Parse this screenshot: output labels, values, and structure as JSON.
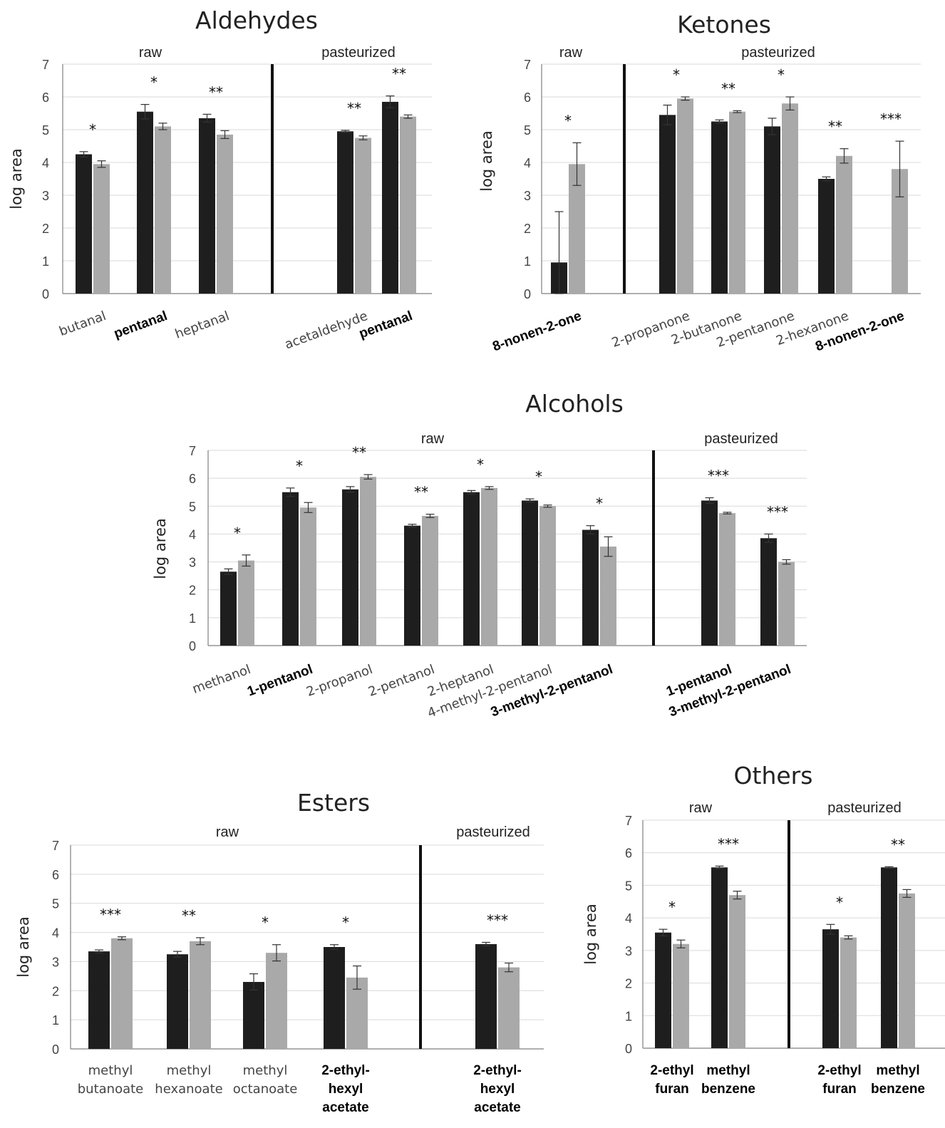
{
  "colors": {
    "dark": "#1e1e1e",
    "light": "#a9a9a9",
    "grid": "#d9d9d9",
    "divider": "#111111"
  },
  "chart_data": [
    {
      "type": "bar",
      "title": "Aldehydes",
      "ylabel": "log area",
      "ylim": [
        0,
        7
      ],
      "yticks": [
        "0",
        "1",
        "2",
        "3",
        "4",
        "5",
        "6",
        "7"
      ],
      "groups": [
        "raw",
        "pasteurized"
      ],
      "categories": [
        "butanal",
        "pentanal",
        "heptanal",
        "acetaldehyde",
        "pentanal"
      ],
      "category_group": [
        "raw",
        "raw",
        "raw",
        "pasteurized",
        "pasteurized"
      ],
      "bold_categories": [
        false,
        true,
        false,
        false,
        true
      ],
      "series": [
        {
          "values": [
            4.25,
            5.55,
            5.35,
            4.95,
            5.85
          ],
          "errors": [
            0.08,
            0.22,
            0.12,
            0.03,
            0.18
          ]
        },
        {
          "values": [
            3.95,
            5.1,
            4.85,
            4.75,
            5.4
          ],
          "errors": [
            0.1,
            0.1,
            0.12,
            0.06,
            0.05
          ]
        }
      ],
      "significance": [
        "*",
        "*",
        "**",
        "**",
        "**"
      ]
    },
    {
      "type": "bar",
      "title": "Ketones",
      "ylabel": "log area",
      "ylim": [
        0,
        7
      ],
      "yticks": [
        "0",
        "1",
        "2",
        "3",
        "4",
        "5",
        "6",
        "7"
      ],
      "groups": [
        "raw",
        "pasteurized"
      ],
      "categories": [
        "8-nonen-2-one",
        "2-propanone",
        "2-butanone",
        "2-pentanone",
        "2-hexanone",
        "8-nonen-2-one"
      ],
      "category_group": [
        "raw",
        "pasteurized",
        "pasteurized",
        "pasteurized",
        "pasteurized",
        "pasteurized"
      ],
      "bold_categories": [
        true,
        false,
        false,
        false,
        false,
        true
      ],
      "series": [
        {
          "values": [
            0.95,
            5.45,
            5.25,
            5.1,
            3.5,
            0
          ],
          "errors": [
            1.55,
            0.3,
            0.05,
            0.25,
            0.06,
            0
          ]
        },
        {
          "values": [
            3.95,
            5.95,
            5.55,
            5.8,
            4.2,
            3.8
          ],
          "errors": [
            0.65,
            0.05,
            0.03,
            0.2,
            0.22,
            0.85
          ]
        }
      ],
      "significance": [
        "*",
        "*",
        "**",
        "*",
        "**",
        "***"
      ]
    },
    {
      "type": "bar",
      "title": "Alcohols",
      "ylabel": "log area",
      "ylim": [
        0,
        7
      ],
      "yticks": [
        "0",
        "1",
        "2",
        "3",
        "4",
        "5",
        "6",
        "7"
      ],
      "groups": [
        "raw",
        "pasteurized"
      ],
      "categories": [
        "methanol",
        "1-pentanol",
        "2-propanol",
        "2-pentanol",
        "2-heptanol",
        "4-methyl-2-pentanol",
        "3-methyl-2-pentanol",
        "1-pentanol",
        "3-methyl-2-pentanol"
      ],
      "category_group": [
        "raw",
        "raw",
        "raw",
        "raw",
        "raw",
        "raw",
        "raw",
        "pasteurized",
        "pasteurized"
      ],
      "bold_categories": [
        false,
        true,
        false,
        false,
        false,
        false,
        true,
        true,
        true
      ],
      "series": [
        {
          "values": [
            2.65,
            5.5,
            5.6,
            4.3,
            5.5,
            5.2,
            4.15,
            5.2,
            3.85
          ],
          "errors": [
            0.1,
            0.15,
            0.1,
            0.05,
            0.06,
            0.06,
            0.15,
            0.1,
            0.15
          ]
        },
        {
          "values": [
            3.05,
            4.95,
            6.05,
            4.65,
            5.65,
            5.0,
            3.55,
            4.75,
            3.0
          ],
          "errors": [
            0.2,
            0.18,
            0.08,
            0.06,
            0.05,
            0.04,
            0.35,
            0.03,
            0.08
          ]
        }
      ],
      "significance": [
        "*",
        "*",
        "**",
        "**",
        "*",
        "*",
        "*",
        "***",
        "***"
      ]
    },
    {
      "type": "bar",
      "title": "Esters",
      "ylabel": "log area",
      "ylim": [
        0,
        7
      ],
      "yticks": [
        "0",
        "1",
        "2",
        "3",
        "4",
        "5",
        "6",
        "7"
      ],
      "groups": [
        "raw",
        "pasteurized"
      ],
      "categories": [
        "methyl butanoate",
        "methyl hexanoate",
        "methyl octanoate",
        "2-ethyl-hexyl acetate",
        "2-ethyl-hexyl acetate"
      ],
      "category_lines": [
        [
          "methyl",
          "butanoate"
        ],
        [
          "methyl",
          "hexanoate"
        ],
        [
          "methyl",
          "octanoate"
        ],
        [
          "2-ethyl-",
          "hexyl",
          "acetate"
        ],
        [
          "2-ethyl-",
          "hexyl",
          "acetate"
        ]
      ],
      "category_group": [
        "raw",
        "raw",
        "raw",
        "raw",
        "pasteurized"
      ],
      "bold_categories": [
        false,
        false,
        false,
        true,
        true
      ],
      "series": [
        {
          "values": [
            3.35,
            3.25,
            2.3,
            3.5,
            3.6
          ],
          "errors": [
            0.05,
            0.1,
            0.28,
            0.08,
            0.06
          ]
        },
        {
          "values": [
            3.8,
            3.7,
            3.3,
            2.45,
            2.8
          ],
          "errors": [
            0.05,
            0.12,
            0.28,
            0.4,
            0.15
          ]
        }
      ],
      "significance": [
        "***",
        "**",
        "*",
        "*",
        "***"
      ]
    },
    {
      "type": "bar",
      "title": "Others",
      "ylabel": "log area",
      "ylim": [
        0,
        7
      ],
      "yticks": [
        "0",
        "1",
        "2",
        "3",
        "4",
        "5",
        "6",
        "7"
      ],
      "groups": [
        "raw",
        "pasteurized"
      ],
      "categories": [
        "2-ethyl furan",
        "methyl benzene",
        "2-ethyl furan",
        "methyl benzene"
      ],
      "category_lines": [
        [
          "2-ethyl",
          "furan"
        ],
        [
          "methyl",
          "benzene"
        ],
        [
          "2-ethyl",
          "furan"
        ],
        [
          "methyl",
          "benzene"
        ]
      ],
      "category_group": [
        "raw",
        "raw",
        "pasteurized",
        "pasteurized"
      ],
      "bold_categories": [
        true,
        true,
        true,
        true
      ],
      "series": [
        {
          "values": [
            3.55,
            5.55,
            3.65,
            5.55
          ],
          "errors": [
            0.1,
            0.04,
            0.15,
            0.02
          ]
        },
        {
          "values": [
            3.2,
            4.7,
            3.4,
            4.75
          ],
          "errors": [
            0.12,
            0.12,
            0.05,
            0.12
          ]
        }
      ],
      "significance": [
        "*",
        "***",
        "*",
        "**"
      ]
    }
  ]
}
